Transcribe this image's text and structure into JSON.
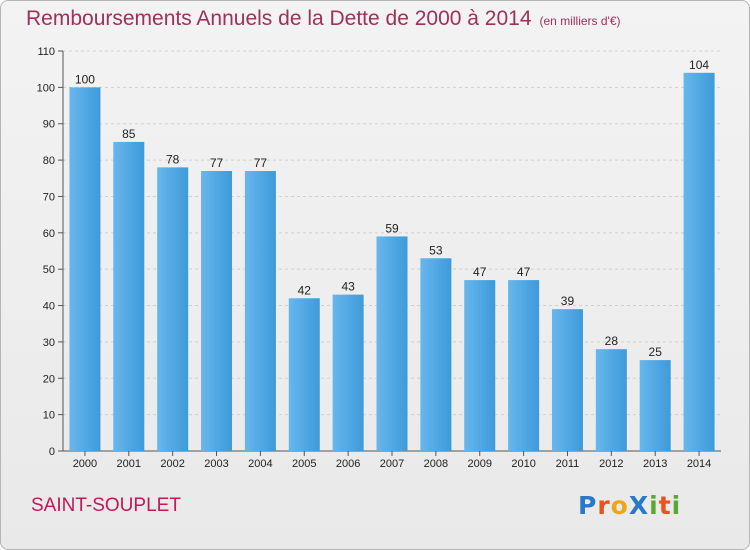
{
  "title": "Remboursements Annuels de la Dette de 2000 à 2014",
  "unit_label": "(en milliers d'€)",
  "town": "SAINT-SOUPLET",
  "logo": "ProXiti",
  "colors": {
    "bar": "#3d9ad9",
    "bar_light": "#67b7ec",
    "title": "#a0305a",
    "town": "#c2185b"
  },
  "chart_data": {
    "type": "bar",
    "categories": [
      "2000",
      "2001",
      "2002",
      "2003",
      "2004",
      "2005",
      "2006",
      "2007",
      "2008",
      "2009",
      "2010",
      "2011",
      "2012",
      "2013",
      "2014"
    ],
    "values": [
      100,
      85,
      78,
      77,
      77,
      42,
      43,
      59,
      53,
      47,
      47,
      39,
      28,
      25,
      104
    ],
    "ylim": [
      0,
      110
    ],
    "yticks": [
      0,
      10,
      20,
      30,
      40,
      50,
      60,
      70,
      80,
      90,
      100,
      110
    ],
    "grid": true
  }
}
